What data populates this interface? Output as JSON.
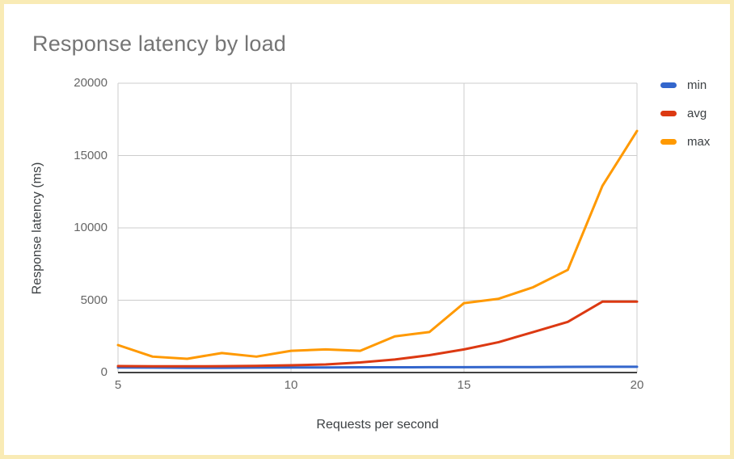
{
  "page": {
    "border_color": "#f9ebb5",
    "background_color": "#ffffff"
  },
  "chart_data": {
    "type": "line",
    "title": "Response latency by load",
    "xlabel": "Requests per second",
    "ylabel": "Response latency (ms)",
    "xlim": [
      5,
      20
    ],
    "ylim": [
      0,
      20000
    ],
    "x_ticks": [
      5,
      10,
      15,
      20
    ],
    "y_ticks": [
      0,
      5000,
      10000,
      15000,
      20000
    ],
    "grid": true,
    "grid_color": "#cccccc",
    "baseline_color": "#424242",
    "legend_position": "right",
    "x": [
      5,
      6,
      7,
      8,
      9,
      10,
      11,
      12,
      13,
      14,
      15,
      16,
      17,
      18,
      19,
      20
    ],
    "series": [
      {
        "name": "min",
        "color": "#3366cc",
        "values": [
          350,
          340,
          330,
          330,
          340,
          350,
          350,
          360,
          360,
          370,
          370,
          380,
          380,
          390,
          400,
          400
        ]
      },
      {
        "name": "avg",
        "color": "#dc3912",
        "values": [
          450,
          430,
          430,
          440,
          460,
          500,
          560,
          700,
          900,
          1200,
          1600,
          2100,
          2800,
          3500,
          4900,
          4900
        ]
      },
      {
        "name": "max",
        "color": "#ff9900",
        "values": [
          1900,
          1100,
          950,
          1350,
          1100,
          1500,
          1600,
          1500,
          2500,
          2800,
          4800,
          5100,
          5900,
          7100,
          12900,
          16700
        ]
      }
    ]
  }
}
